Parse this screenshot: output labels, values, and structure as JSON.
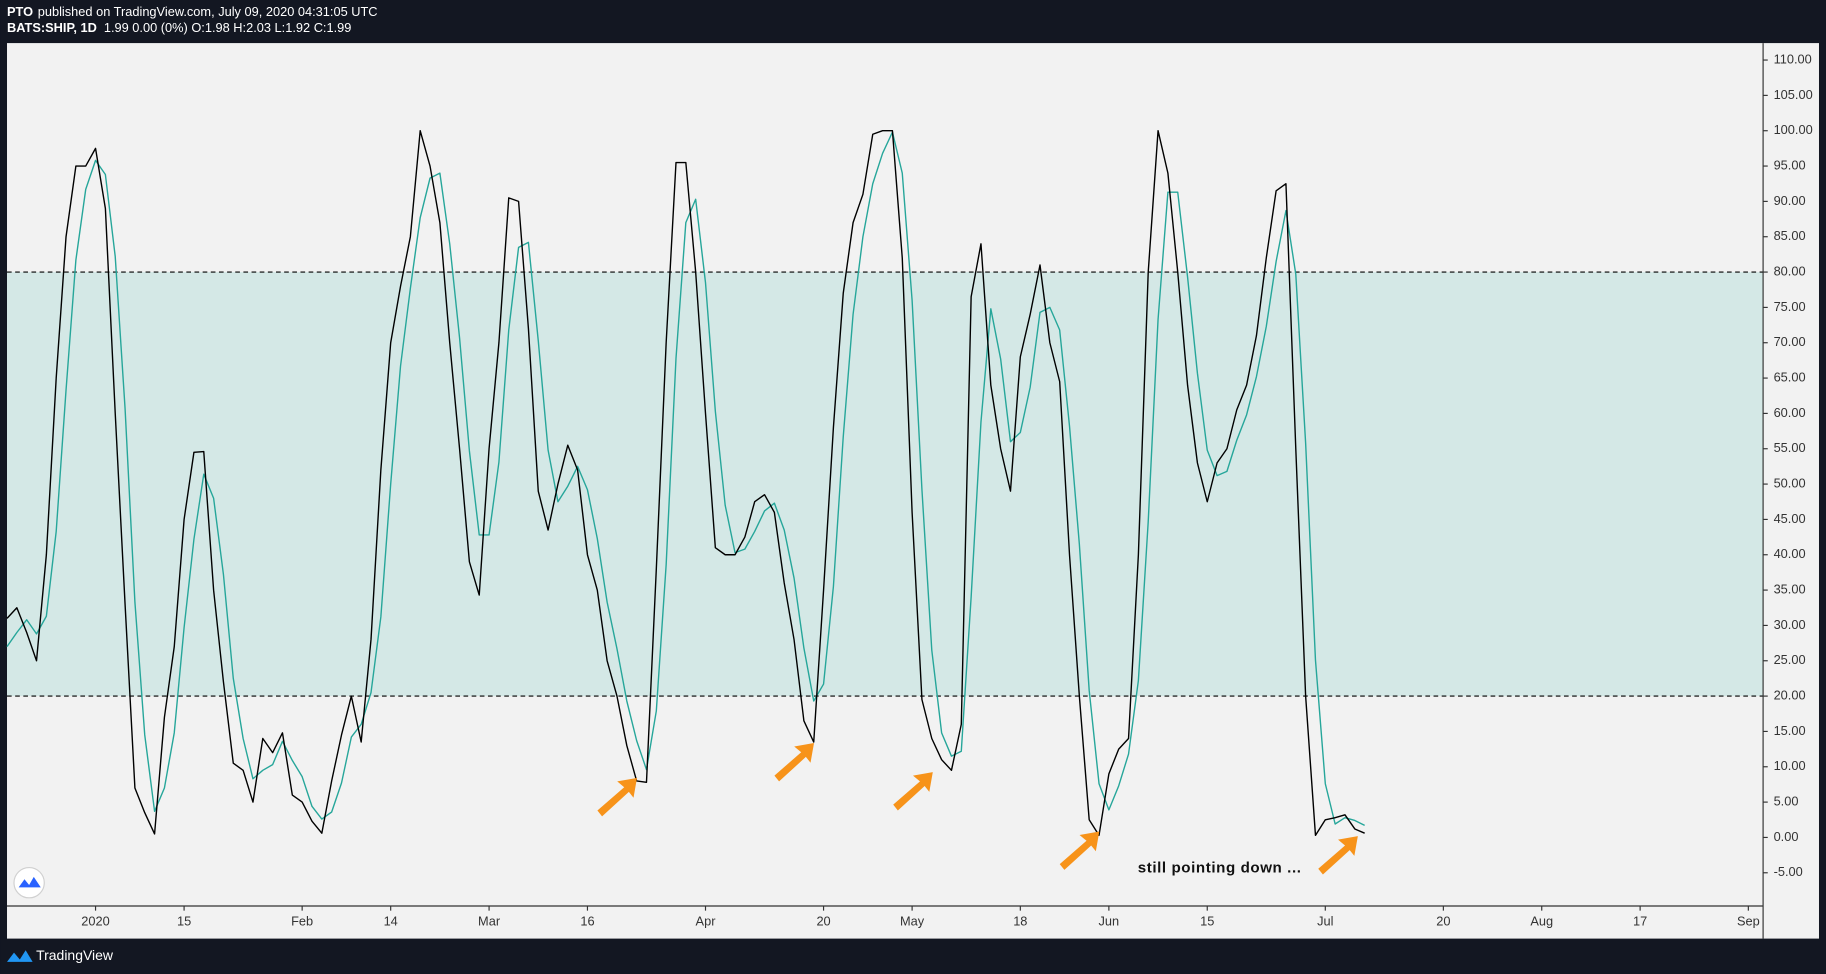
{
  "header": {
    "author": "PTO",
    "published": "published on TradingView.com, July 09, 2020 04:31:05 UTC",
    "symbol": "BATS:SHIP, 1D",
    "quote": "1.99 0.00 (0%) O:1.98 H:2.03 L:1.92 C:1.99"
  },
  "footer": {
    "brand": "TradingView"
  },
  "chart_data": {
    "type": "line",
    "x": [
      -9,
      -8,
      -7,
      -6,
      -5,
      -4,
      -3,
      -2,
      -1,
      0,
      1,
      2,
      3,
      4,
      5,
      6,
      7,
      8,
      9,
      10,
      11,
      12,
      13,
      14,
      15,
      16,
      17,
      18,
      19,
      20,
      21,
      22,
      23,
      24,
      25,
      26,
      27,
      28,
      29,
      30,
      31,
      32,
      33,
      34,
      35,
      36,
      37,
      38,
      39,
      40,
      41,
      42,
      43,
      44,
      45,
      46,
      47,
      48,
      49,
      50,
      51,
      52,
      53,
      54,
      55,
      56,
      57,
      58,
      59,
      60,
      61,
      62,
      63,
      64,
      65,
      66,
      67,
      68,
      69,
      70,
      71,
      72,
      73,
      74,
      75,
      76,
      77,
      78,
      79,
      80,
      81,
      82,
      83,
      84,
      85,
      86,
      87,
      88,
      89,
      90,
      91,
      92,
      93,
      94,
      95,
      96,
      97,
      98,
      99,
      100,
      101,
      102,
      103,
      104,
      105,
      106,
      107,
      108,
      109,
      110,
      111,
      112,
      113,
      114,
      115,
      116,
      117,
      118,
      119,
      120,
      121,
      122,
      123,
      124,
      125,
      126,
      127,
      128,
      129
    ],
    "series": [
      {
        "color": "#000000",
        "values": [
          31,
          32.5,
          29,
          25,
          40,
          65,
          85,
          95,
          95,
          97.5,
          89,
          60,
          33,
          7,
          3.5,
          0.5,
          17,
          27,
          45,
          54.5,
          54.6,
          35,
          22,
          10.5,
          9.5,
          5,
          14,
          12,
          14.8,
          6,
          5,
          2.3,
          0.6,
          8,
          14.5,
          20,
          13.5,
          28,
          52,
          70,
          78,
          85,
          100,
          95,
          87,
          70,
          55,
          39,
          34.3,
          55,
          70,
          90.5,
          90,
          72,
          49,
          43.5,
          50,
          55.5,
          52,
          40,
          35,
          25,
          20,
          13,
          8,
          7.8,
          38,
          70,
          95.5,
          95.5,
          80,
          60,
          41,
          40,
          40,
          42.5,
          47.5,
          48.5,
          46,
          36,
          28,
          16.5,
          13.5,
          35,
          58,
          77,
          87,
          91,
          99.5,
          100,
          100,
          82,
          46,
          19.5,
          14,
          11,
          9.5,
          16,
          76.5,
          84,
          64,
          55,
          49,
          68,
          74,
          81,
          70,
          64.5,
          40,
          20,
          2.5,
          0.3,
          9,
          12.5,
          14,
          40,
          80,
          100,
          94,
          80,
          64,
          53,
          47.5,
          53,
          55,
          60.5,
          64,
          71,
          82,
          91.5,
          92.5,
          55,
          20,
          0.3,
          2.5,
          2.8,
          3.2,
          1.2,
          0.6
        ]
      },
      {
        "color": "#26a69a",
        "values": [
          27,
          29,
          30.8,
          28.8,
          31.3,
          43.3,
          63.3,
          81.7,
          91.7,
          95.8,
          93.8,
          82.2,
          60.7,
          33.3,
          14.5,
          3.7,
          7,
          14.8,
          29.7,
          42.2,
          51.4,
          48,
          37.2,
          22.5,
          14,
          8.3,
          9.5,
          10.3,
          13.6,
          10.9,
          8.6,
          4.4,
          2.6,
          3.6,
          7.7,
          14.2,
          16,
          20.5,
          31.2,
          50,
          66.7,
          77.7,
          87.7,
          93.3,
          94,
          84,
          70.7,
          54.7,
          42.8,
          42.8,
          53.1,
          71.8,
          83.5,
          84.2,
          70.3,
          54.8,
          47.5,
          49.7,
          52.5,
          49.2,
          42.3,
          33.3,
          26.7,
          19.3,
          13.7,
          9.6,
          17.9,
          38.6,
          67.8,
          87,
          90.3,
          78.5,
          60.3,
          47,
          40.3,
          40.8,
          43.3,
          46.2,
          47.3,
          43.5,
          36.7,
          26.8,
          19.3,
          21.7,
          35.5,
          56.7,
          74,
          85,
          92.5,
          96.8,
          99.8,
          94,
          76,
          49.2,
          26.5,
          14.8,
          11.5,
          12.2,
          34,
          58.8,
          74.8,
          67.7,
          56,
          57.3,
          63.7,
          74.3,
          75,
          71.8,
          58.2,
          41.5,
          20.8,
          7.6,
          3.9,
          7.3,
          11.8,
          22.2,
          44.7,
          73.3,
          91.3,
          91.3,
          79.3,
          65.7,
          54.8,
          51.2,
          51.8,
          56.2,
          59.8,
          65.2,
          72.3,
          81.5,
          88.7,
          79.7,
          55.8,
          25.1,
          7.6,
          1.9,
          2.8,
          2.4,
          1.7
        ]
      }
    ],
    "xlim": [
      -9,
      169.5
    ],
    "xticks": [
      {
        "value": 0,
        "label": "2020"
      },
      {
        "value": 9,
        "label": "15"
      },
      {
        "value": 21,
        "label": "Feb"
      },
      {
        "value": 30,
        "label": "14"
      },
      {
        "value": 40,
        "label": "Mar"
      },
      {
        "value": 50,
        "label": "16"
      },
      {
        "value": 62,
        "label": "Apr"
      },
      {
        "value": 74,
        "label": "20"
      },
      {
        "value": 83,
        "label": "May"
      },
      {
        "value": 94,
        "label": "18"
      },
      {
        "value": 103,
        "label": "Jun"
      },
      {
        "value": 113,
        "label": "15"
      },
      {
        "value": 125,
        "label": "Jul"
      },
      {
        "value": 137,
        "label": "20"
      },
      {
        "value": 147,
        "label": "Aug"
      },
      {
        "value": 157,
        "label": "17"
      },
      {
        "value": 168,
        "label": "Sep"
      }
    ],
    "ylim": [
      -9.7,
      112.4
    ],
    "yticks": [
      {
        "value": 110,
        "label": "110.00"
      },
      {
        "value": 105,
        "label": "105.00"
      },
      {
        "value": 100,
        "label": "100.00"
      },
      {
        "value": 95,
        "label": "95.00"
      },
      {
        "value": 90,
        "label": "90.00"
      },
      {
        "value": 85,
        "label": "85.00"
      },
      {
        "value": 80,
        "label": "80.00"
      },
      {
        "value": 75,
        "label": "75.00"
      },
      {
        "value": 70,
        "label": "70.00"
      },
      {
        "value": 65,
        "label": "65.00"
      },
      {
        "value": 60,
        "label": "60.00"
      },
      {
        "value": 55,
        "label": "55.00"
      },
      {
        "value": 50,
        "label": "50.00"
      },
      {
        "value": 45,
        "label": "45.00"
      },
      {
        "value": 40,
        "label": "40.00"
      },
      {
        "value": 35,
        "label": "35.00"
      },
      {
        "value": 30,
        "label": "30.00"
      },
      {
        "value": 25,
        "label": "25.00"
      },
      {
        "value": 20,
        "label": "20.00"
      },
      {
        "value": 15,
        "label": "15.00"
      },
      {
        "value": 10,
        "label": "10.00"
      },
      {
        "value": 5,
        "label": "5.00"
      },
      {
        "value": 0,
        "label": "0.00"
      },
      {
        "value": -5,
        "label": "-5.00"
      }
    ],
    "band": {
      "lower": 20,
      "upper": 80,
      "color": "#d4e8e6"
    },
    "grid": false,
    "annotation": "still pointing down ..."
  }
}
